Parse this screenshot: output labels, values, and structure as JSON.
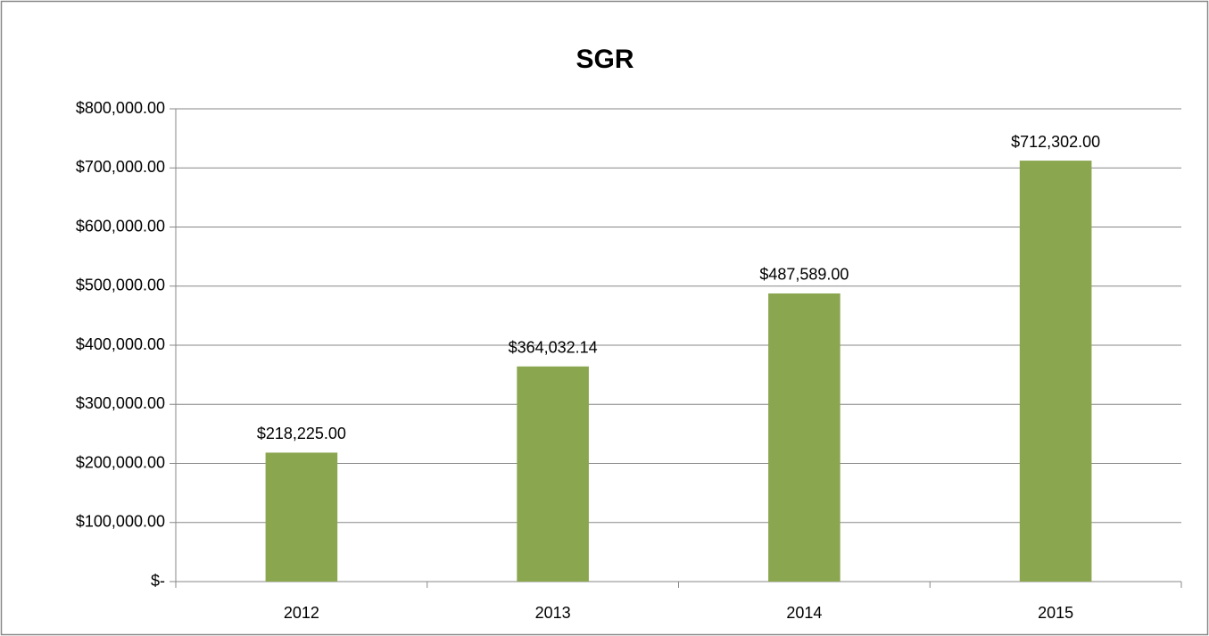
{
  "chart_data": {
    "type": "bar",
    "title": "SGR",
    "categories": [
      "2012",
      "2013",
      "2014",
      "2015"
    ],
    "values": [
      218225,
      364032.14,
      487589,
      712302
    ],
    "value_labels": [
      "$218,225.00",
      "$364,032.14",
      "$487,589.00",
      "$712,302.00"
    ],
    "color": "#8aa64f",
    "ylim": [
      0,
      800000
    ],
    "yticks": [
      {
        "value": 0,
        "label": "$-"
      },
      {
        "value": 100000,
        "label": "$100,000.00"
      },
      {
        "value": 200000,
        "label": "$200,000.00"
      },
      {
        "value": 300000,
        "label": "$300,000.00"
      },
      {
        "value": 400000,
        "label": "$400,000.00"
      },
      {
        "value": 500000,
        "label": "$500,000.00"
      },
      {
        "value": 600000,
        "label": "$600,000.00"
      },
      {
        "value": 700000,
        "label": "$700,000.00"
      },
      {
        "value": 800000,
        "label": "$800,000.00"
      }
    ],
    "grid": true
  }
}
